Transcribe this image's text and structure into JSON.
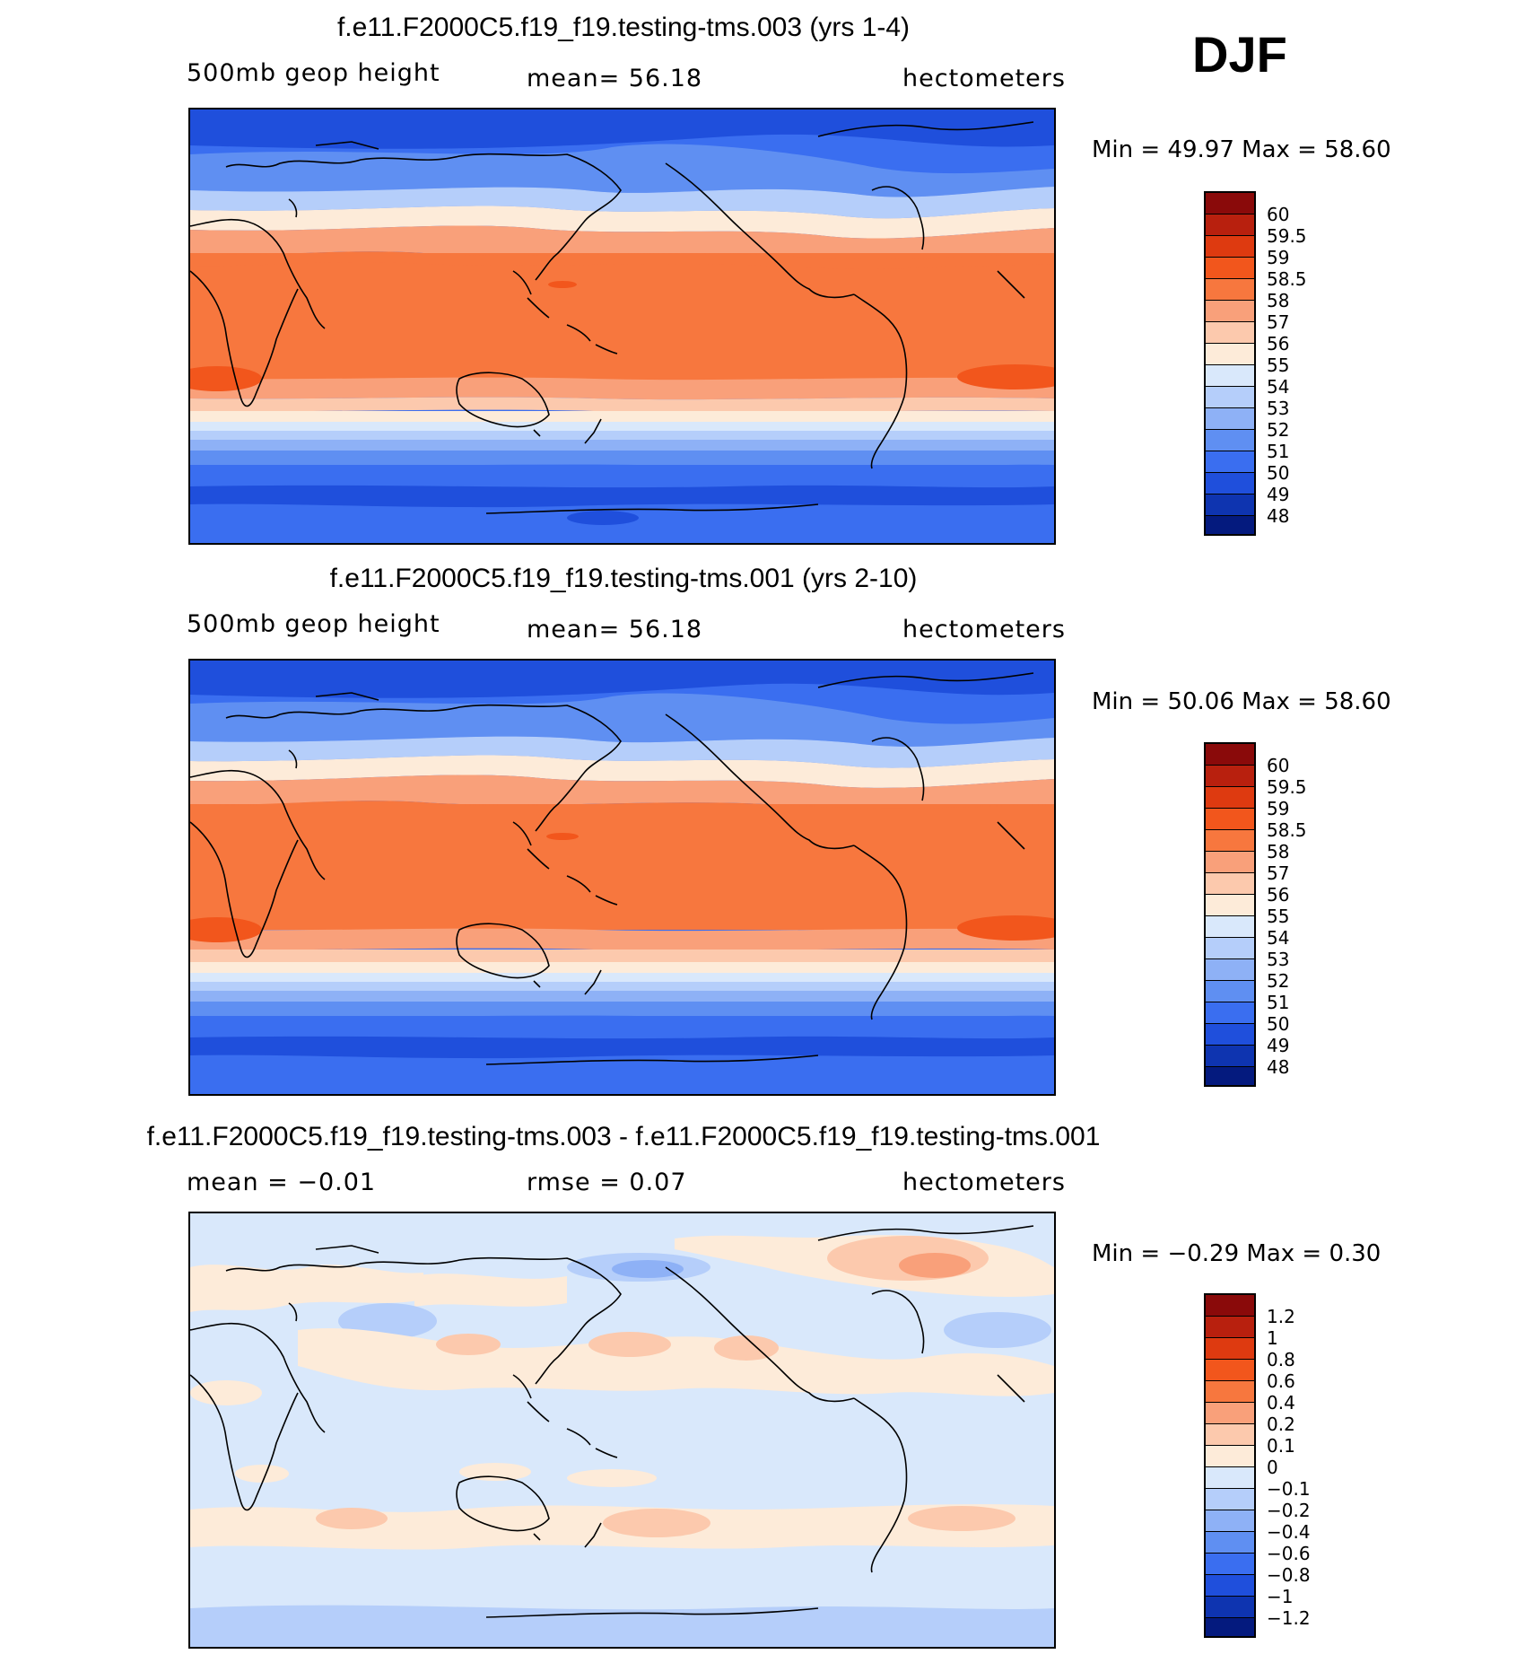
{
  "season": "DJF",
  "panels": [
    {
      "title": "f.e11.F2000C5.f19_f19.testing-tms.003 (yrs 1-4)",
      "left_label": "500mb geop height",
      "mid_label": "mean=   56.18",
      "units": "hectometers",
      "minmax": "Min =   49.97 Max =   58.60",
      "colorbar_labels": [
        "60",
        "59.5",
        "59",
        "58.5",
        "58",
        "57",
        "56",
        "55",
        "54",
        "53",
        "52",
        "51",
        "50",
        "49",
        "48"
      ]
    },
    {
      "title": "f.e11.F2000C5.f19_f19.testing-tms.001 (yrs 2-10)",
      "left_label": "500mb geop height",
      "mid_label": "mean=   56.18",
      "units": "hectometers",
      "minmax": "Min =   50.06 Max =   58.60",
      "colorbar_labels": [
        "60",
        "59.5",
        "59",
        "58.5",
        "58",
        "57",
        "56",
        "55",
        "54",
        "53",
        "52",
        "51",
        "50",
        "49",
        "48"
      ]
    },
    {
      "title": "f.e11.F2000C5.f19_f19.testing-tms.003 - f.e11.F2000C5.f19_f19.testing-tms.001",
      "left_label": "mean =   −0.01",
      "mid_label": "rmse =    0.07",
      "units": "hectometers",
      "minmax": "Min =   −0.29 Max =     0.30",
      "colorbar_labels": [
        "1.2",
        "1",
        "0.8",
        "0.6",
        "0.4",
        "0.2",
        "0.1",
        "0",
        "−0.1",
        "−0.2",
        "−0.4",
        "−0.6",
        "−0.8",
        "−1",
        "−1.2"
      ]
    }
  ],
  "colors": {
    "palette": [
      "#8a0a0a",
      "#b8200e",
      "#de3a10",
      "#f2561c",
      "#f7773e",
      "#f9a07a",
      "#fcc9ad",
      "#fdebd9",
      "#d9e8fb",
      "#b5cefa",
      "#8eb1f6",
      "#5f8ff2",
      "#3a6ef0",
      "#1f4fdc",
      "#0e34b0",
      "#041a7e"
    ],
    "coastline": "#000000"
  }
}
